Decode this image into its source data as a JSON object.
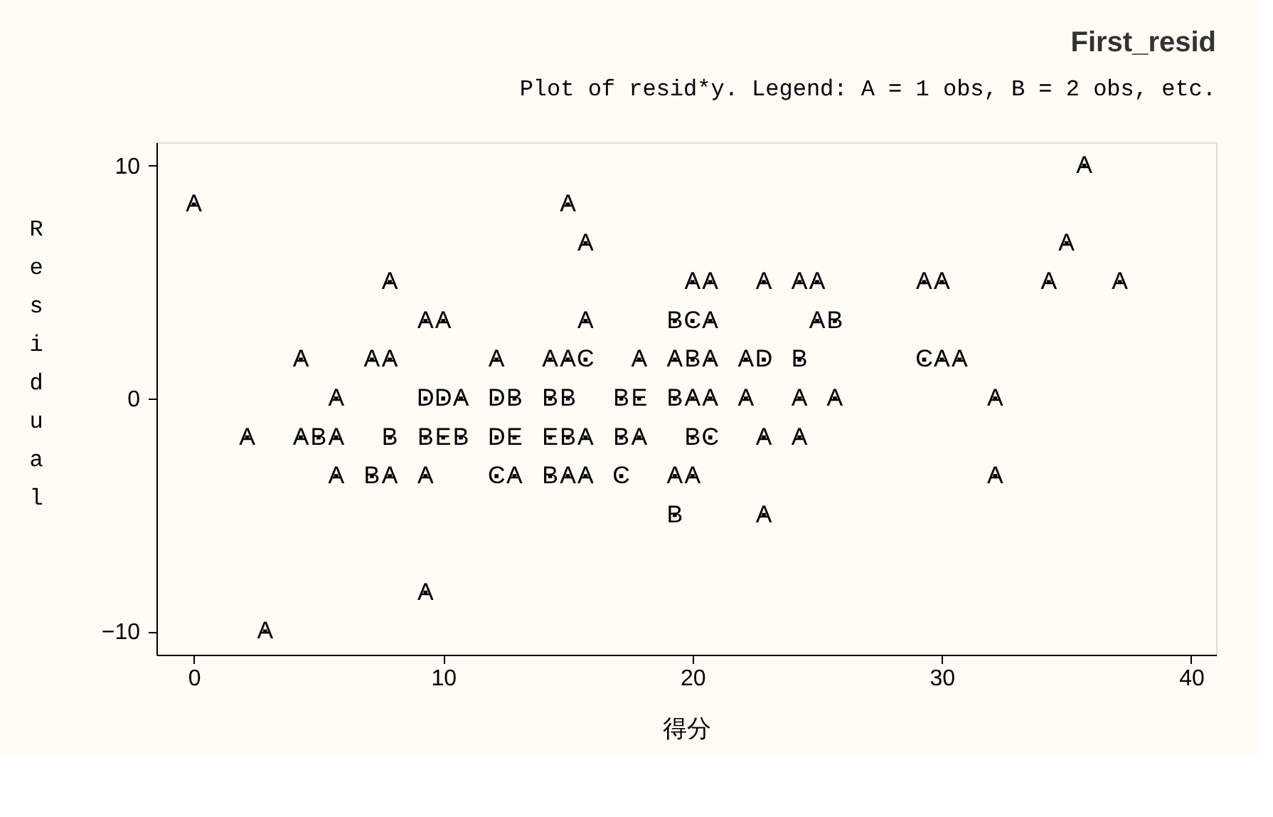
{
  "chart_data": {
    "type": "scatter",
    "title": "First_resid",
    "subtitle": "Plot of resid*y.  Legend: A = 1 obs, B = 2 obs, etc.",
    "xlabel": "得分",
    "ylabel": "Residual",
    "x": [
      35.71,
      0,
      15,
      15.71,
      35,
      7.86,
      20,
      20.71,
      22.86,
      24.29,
      25,
      29.29,
      30,
      34.29,
      37.14,
      9.29,
      10,
      15.71,
      19.29,
      20,
      20.71,
      25,
      25.71,
      4.29,
      7.14,
      7.86,
      12.14,
      14.29,
      15,
      15.71,
      17.86,
      19.29,
      20,
      20.71,
      22.14,
      22.86,
      24.29,
      29.29,
      30,
      30.71,
      5.71,
      9.29,
      10,
      10.71,
      12.14,
      12.86,
      14.29,
      15,
      17.14,
      17.86,
      19.29,
      20,
      20.71,
      22.14,
      24.29,
      25.71,
      32.14,
      2.14,
      4.29,
      5,
      5.71,
      7.86,
      9.29,
      10,
      10.71,
      12.14,
      12.86,
      14.29,
      15,
      15.71,
      17.14,
      17.86,
      20,
      20.71,
      22.86,
      24.29,
      5.71,
      7.14,
      7.86,
      9.29,
      12.14,
      12.86,
      14.29,
      15,
      15.71,
      17.14,
      19.29,
      20,
      32.14,
      19.29,
      22.86,
      9.29,
      2.86
    ],
    "values": [
      10,
      8.33,
      8.33,
      6.67,
      6.67,
      5,
      5,
      5,
      5,
      5,
      5,
      5,
      5,
      5,
      5,
      3.33,
      3.33,
      3.33,
      3.33,
      3.33,
      3.33,
      3.33,
      3.33,
      1.67,
      1.67,
      1.67,
      1.67,
      1.67,
      1.67,
      1.67,
      1.67,
      1.67,
      1.67,
      1.67,
      1.67,
      1.67,
      1.67,
      1.67,
      1.67,
      1.67,
      0,
      0,
      0,
      0,
      0,
      0,
      0,
      0,
      0,
      0,
      0,
      0,
      0,
      0,
      0,
      0,
      0,
      -1.67,
      -1.67,
      -1.67,
      -1.67,
      -1.67,
      -1.67,
      -1.67,
      -1.67,
      -1.67,
      -1.67,
      -1.67,
      -1.67,
      -1.67,
      -1.67,
      -1.67,
      -1.67,
      -1.67,
      -1.67,
      -1.67,
      -3.33,
      -3.33,
      -3.33,
      -3.33,
      -3.33,
      -3.33,
      -3.33,
      -3.33,
      -3.33,
      -3.33,
      -3.33,
      -3.33,
      -3.33,
      -5,
      -5,
      -8.33,
      -10
    ],
    "value_labels": [
      "A",
      "A",
      "A",
      "A",
      "A",
      "A",
      "A",
      "A",
      "A",
      "A",
      "A",
      "A",
      "A",
      "A",
      "A",
      "A",
      "A",
      "A",
      "B",
      "C",
      "A",
      "A",
      "B",
      "A",
      "A",
      "A",
      "A",
      "A",
      "A",
      "C",
      "A",
      "A",
      "B",
      "A",
      "A",
      "D",
      "B",
      "C",
      "A",
      "A",
      "A",
      "D",
      "D",
      "A",
      "D",
      "B",
      "B",
      "B",
      "B",
      "E",
      "B",
      "A",
      "A",
      "A",
      "A",
      "A",
      "A",
      "A",
      "A",
      "B",
      "A",
      "B",
      "B",
      "E",
      "B",
      "D",
      "E",
      "E",
      "B",
      "A",
      "B",
      "A",
      "B",
      "C",
      "A",
      "A",
      "A",
      "B",
      "A",
      "A",
      "C",
      "A",
      "B",
      "A",
      "A",
      "C",
      "A",
      "A",
      "A",
      "B",
      "A",
      "A",
      "A"
    ],
    "color": "#000000",
    "xlim": [
      -1.5,
      41
    ],
    "ylim": [
      -11,
      11
    ],
    "xticks": [
      0,
      10,
      20,
      30,
      40
    ],
    "yticks": [
      -10,
      0,
      10
    ],
    "grid": false
  }
}
